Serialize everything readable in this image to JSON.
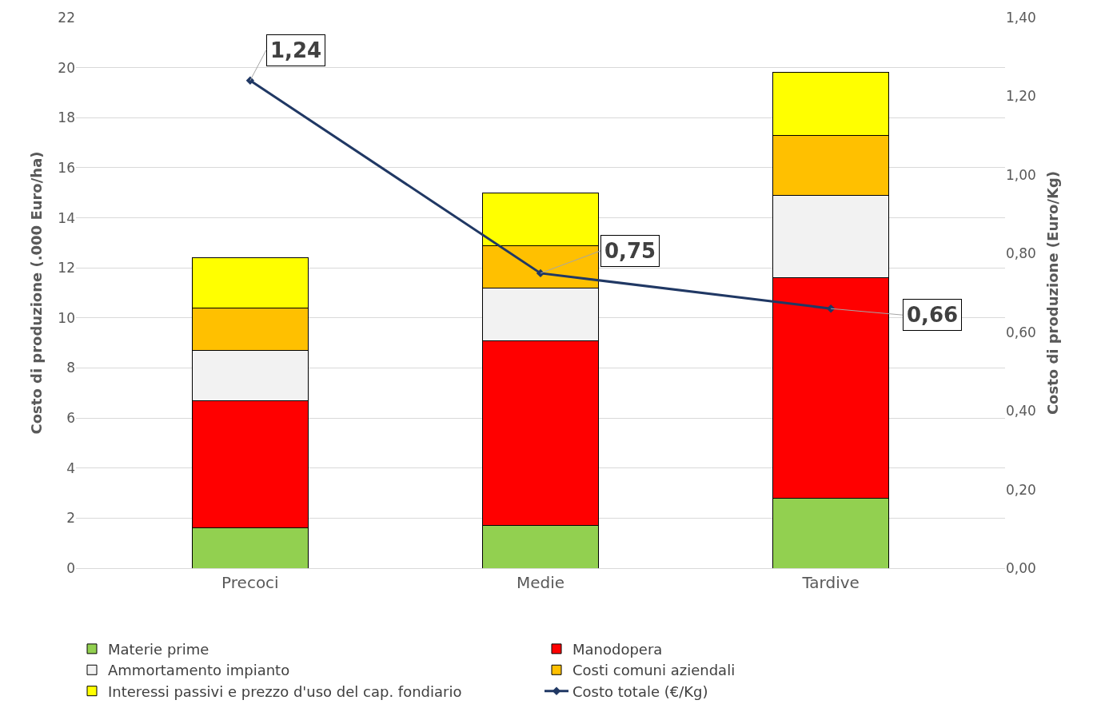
{
  "chart_data": {
    "type": "bar",
    "stacked": true,
    "ylabel": "Costo di produzione (.000 Euro/ha)",
    "y2label": "Costo di produzione (Euro/Kg)",
    "categories": [
      "Precoci",
      "Medie",
      "Tardive"
    ],
    "series": [
      {
        "name": "Materie prime",
        "color": "#92d050",
        "values": [
          1.6,
          1.7,
          2.8
        ]
      },
      {
        "name": "Manodopera",
        "color": "#ff0000",
        "values": [
          5.1,
          7.4,
          8.8
        ]
      },
      {
        "name": "Ammortamento impianto",
        "color": "#f2f2f2",
        "values": [
          2.0,
          2.1,
          3.3
        ]
      },
      {
        "name": "Costi comuni aziendali",
        "color": "#ffc000",
        "values": [
          1.7,
          1.7,
          2.4
        ]
      },
      {
        "name": "Interessi passivi e prezzo d'uso del cap. fondiario",
        "color": "#ffff00",
        "values": [
          2.0,
          2.1,
          2.5
        ]
      },
      {
        "name": "Costo totale (€/Kg)",
        "type": "line",
        "axis": "y2",
        "color": "#203864",
        "marker": "diamond",
        "values": [
          1.24,
          0.75,
          0.66
        ],
        "value_labels": [
          "1,24",
          "0,75",
          "0,66"
        ]
      }
    ],
    "ylim": [
      0,
      22
    ],
    "yticks": [
      0,
      2,
      4,
      6,
      8,
      10,
      12,
      14,
      16,
      18,
      20,
      22
    ],
    "y2lim": [
      0,
      1.4
    ],
    "y2ticks": [
      {
        "value": 0,
        "label": "0,00"
      },
      {
        "value": 0.2,
        "label": "0,20"
      },
      {
        "value": 0.4,
        "label": "0,40"
      },
      {
        "value": 0.6,
        "label": "0,60"
      },
      {
        "value": 0.8,
        "label": "0,80"
      },
      {
        "value": 1.0,
        "label": "1,00"
      },
      {
        "value": 1.2,
        "label": "1,20"
      },
      {
        "value": 1.4,
        "label": "1,40"
      }
    ],
    "grid": "y",
    "legend": "bottom"
  }
}
